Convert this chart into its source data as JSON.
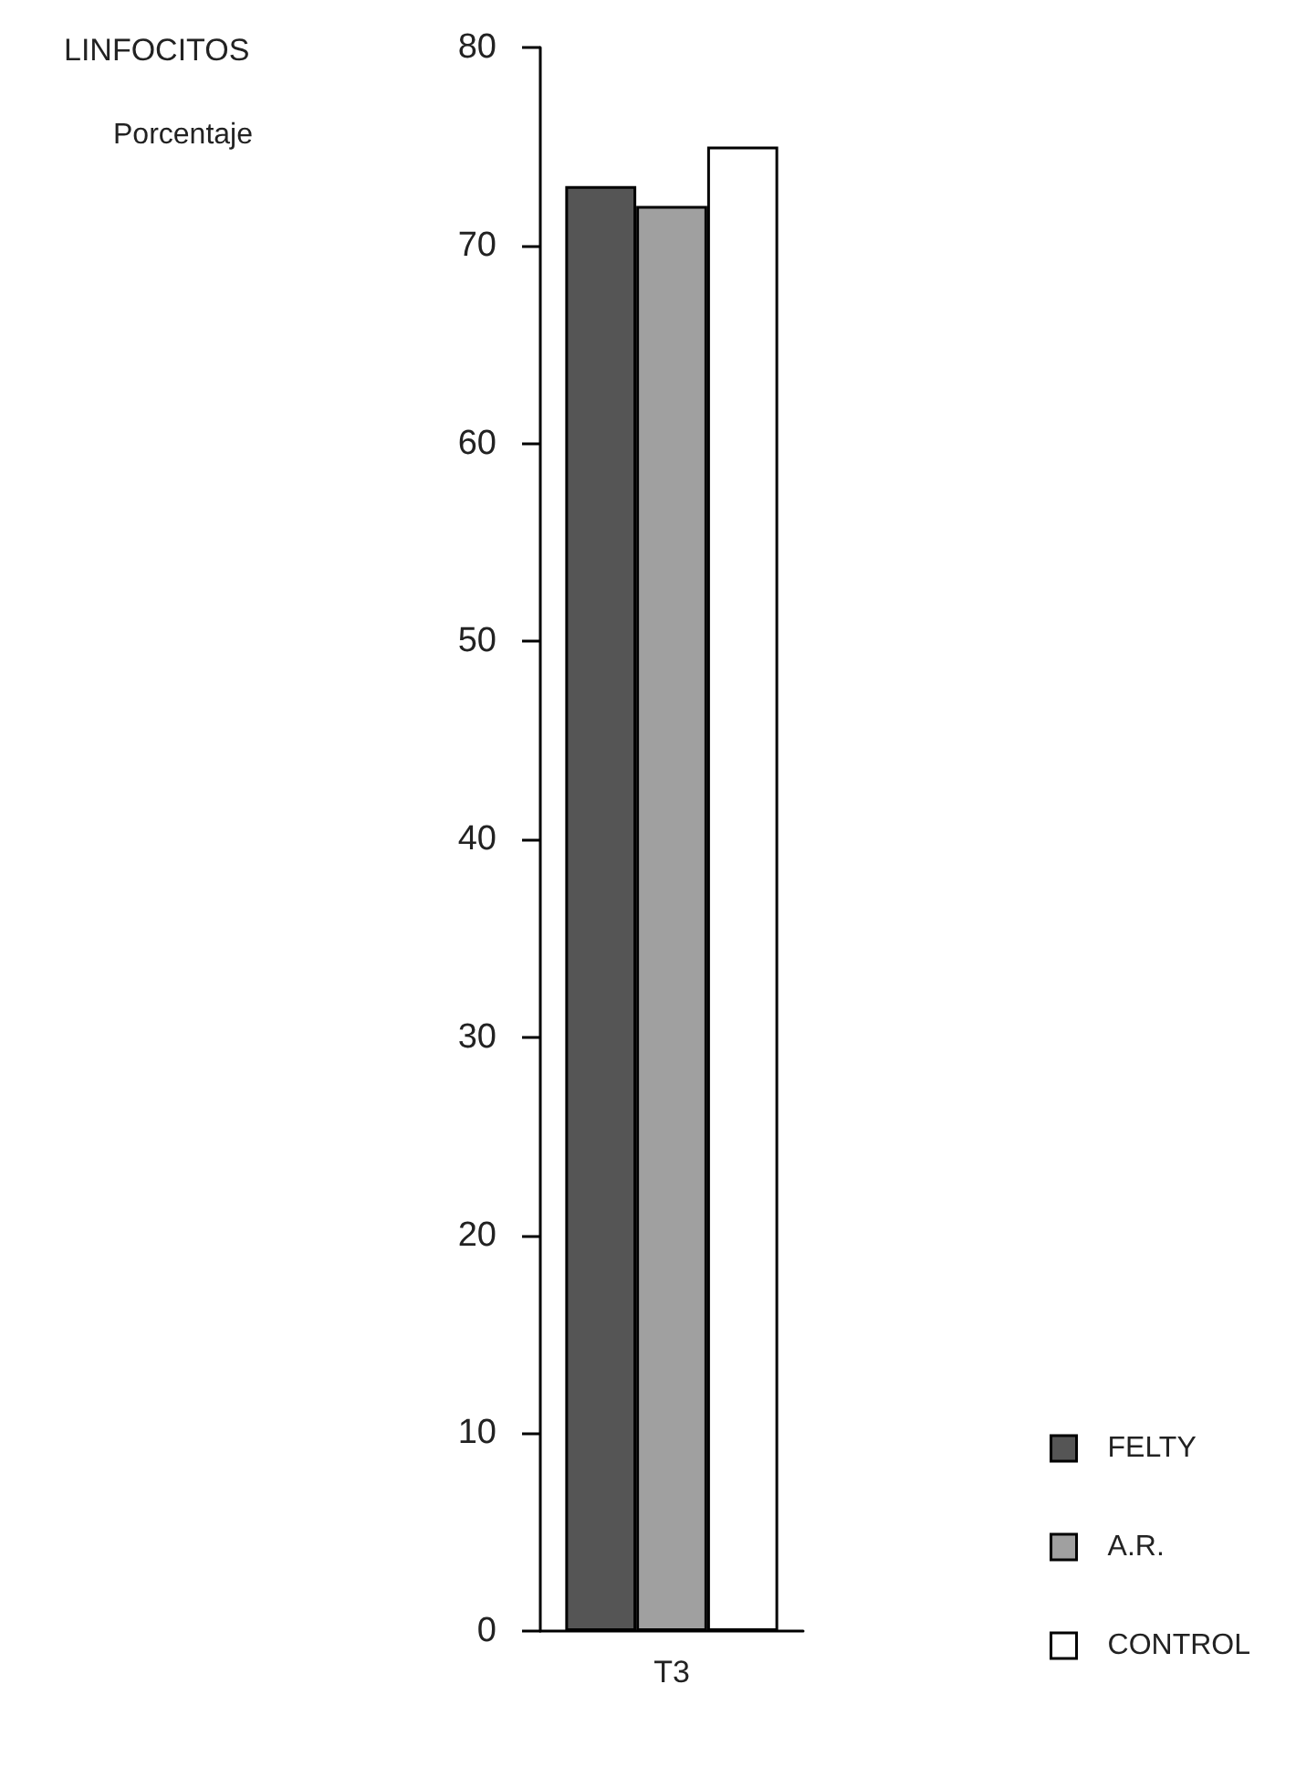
{
  "chart_data": {
    "type": "bar",
    "title": "LINFOCITOS",
    "annotations": [
      "Porcentaje"
    ],
    "categories": [
      "T3"
    ],
    "series": [
      {
        "name": "FELTY",
        "color": "#555555",
        "values": [
          73
        ]
      },
      {
        "name": "A.R.",
        "color": "#a0a0a0",
        "values": [
          72
        ]
      },
      {
        "name": "CONTROL",
        "color": "#ffffff",
        "values": [
          75
        ]
      }
    ],
    "ylim": [
      0,
      80
    ],
    "yticks": [
      0,
      10,
      20,
      30,
      40,
      50,
      60,
      70,
      80
    ],
    "grid": false,
    "legend": "bottom right"
  }
}
